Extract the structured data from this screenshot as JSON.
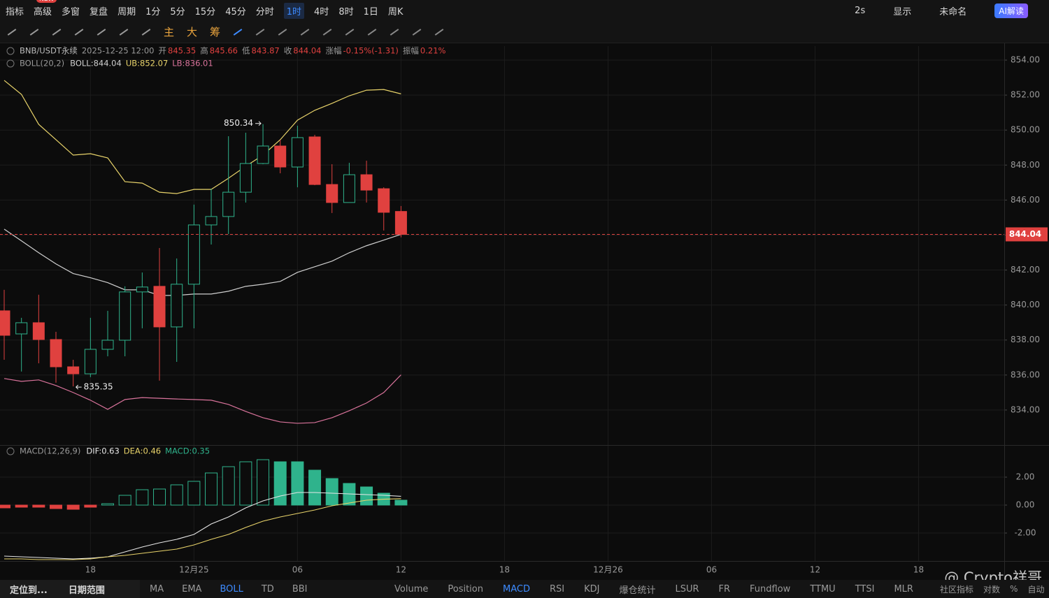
{
  "toolbar": {
    "menu": [
      "指标",
      "高级",
      "多窗",
      "复盘",
      "周期"
    ],
    "badge": "NEW",
    "intervals": [
      {
        "label": "1分"
      },
      {
        "label": "5分"
      },
      {
        "label": "15分"
      },
      {
        "label": "45分"
      },
      {
        "label": "分时"
      },
      {
        "label": "1时",
        "active": true
      },
      {
        "label": "4时"
      },
      {
        "label": "8时"
      },
      {
        "label": "1日"
      },
      {
        "label": "周K"
      }
    ],
    "right": [
      "2s",
      "显示",
      "未命名"
    ],
    "ai": "AI解读",
    "tools": [
      "主",
      "大",
      "筹"
    ]
  },
  "info": {
    "symbol": "BNB/USDT永续",
    "time": "2025-12-25 12:00",
    "open": "开",
    "high": "高",
    "low": "低",
    "close": "收",
    "change_label": "涨幅",
    "change": "-0.15%(-1.31)",
    "amp_label": "振幅",
    "amp": "0.21%"
  },
  "bottom": {
    "left": [
      "定位到...",
      "日期范围"
    ],
    "main_tabs": [
      {
        "label": "MA"
      },
      {
        "label": "EMA"
      },
      {
        "label": "BOLL",
        "active": true
      },
      {
        "label": "TD"
      },
      {
        "label": "BBI"
      }
    ],
    "sub_tabs": [
      {
        "label": "Volume"
      },
      {
        "label": "Position"
      },
      {
        "label": "MACD",
        "active": true
      },
      {
        "label": "RSI"
      },
      {
        "label": "KDJ"
      },
      {
        "label": "爆仓统计"
      },
      {
        "label": "LSUR"
      },
      {
        "label": "FR"
      },
      {
        "label": "Fundflow"
      },
      {
        "label": "TTMU"
      },
      {
        "label": "TTSI"
      },
      {
        "label": "MLR"
      }
    ],
    "right": [
      "社区指标",
      "对数",
      "%",
      "自动"
    ]
  },
  "watermark": "@ Crypto祥哥",
  "chart_data": [
    {
      "type": "candlestick",
      "indicator": "BOLL(20,2)",
      "categories": [
        null,
        null,
        null,
        null,
        null,
        "18",
        null,
        null,
        null,
        null,
        null,
        "12月25",
        null,
        null,
        null,
        null,
        null,
        "06",
        null,
        null,
        null,
        null,
        null,
        "12"
      ],
      "labels_beyond": [
        "18",
        "12月26",
        "06",
        "12",
        "18"
      ],
      "open": [
        839.67,
        838.35,
        838.99,
        838.03,
        836.47,
        836.07,
        837.47,
        837.99,
        840.75,
        841.07,
        838.75,
        841.19,
        844.58,
        845.06,
        846.45,
        848.09,
        849.09,
        847.89,
        849.61,
        846.89,
        845.86,
        847.45,
        846.65,
        845.35
      ],
      "high": [
        840.87,
        839.27,
        840.59,
        838.47,
        836.87,
        839.27,
        839.67,
        841.07,
        841.86,
        843.26,
        842.66,
        845.74,
        846.65,
        849.65,
        849.85,
        850.34,
        849.45,
        850.25,
        849.73,
        848.05,
        848.13,
        848.25,
        846.73,
        845.66
      ],
      "low": [
        836.87,
        836.2,
        836.67,
        835.56,
        835.35,
        835.88,
        837.07,
        837.07,
        838.67,
        835.68,
        836.75,
        838.67,
        843.46,
        844.06,
        845.86,
        848.05,
        847.53,
        846.73,
        846.85,
        845.26,
        845.86,
        845.86,
        844.26,
        843.87
      ],
      "close": [
        838.27,
        838.99,
        838.03,
        836.47,
        836.07,
        837.47,
        837.99,
        840.75,
        841.03,
        838.75,
        841.19,
        844.58,
        845.06,
        846.45,
        848.09,
        849.09,
        847.89,
        849.57,
        846.89,
        845.86,
        847.45,
        846.57,
        845.3,
        844.04
      ],
      "up_color": "#2fb38c",
      "down_color": "#e0413f",
      "ylim": [
        832.0,
        854.8
      ],
      "yticks": [
        {
          "value": 834,
          "label": "834.00"
        },
        {
          "value": 836,
          "label": "836.00"
        },
        {
          "value": 838,
          "label": "838.00"
        },
        {
          "value": 840,
          "label": "840.00"
        },
        {
          "value": 842,
          "label": "842.00"
        },
        {
          "value": 844,
          "label": "844.00"
        },
        {
          "value": 846,
          "label": "846.00"
        },
        {
          "value": 848,
          "label": "848.00"
        },
        {
          "value": 850,
          "label": "850.00"
        },
        {
          "value": 852,
          "label": "852.00"
        },
        {
          "value": 854,
          "label": "854.00"
        }
      ],
      "grid": true,
      "last_price_line": true,
      "series": [
        {
          "name": "BOLL:",
          "color": "#cfcfcf",
          "values": [
            844.34,
            843.67,
            842.99,
            842.35,
            841.8,
            841.56,
            841.28,
            840.87,
            840.87,
            840.55,
            840.55,
            840.63,
            840.63,
            840.79,
            841.07,
            841.19,
            841.35,
            841.87,
            842.19,
            842.51,
            842.99,
            843.39,
            843.71,
            844.04
          ]
        },
        {
          "name": "UB:",
          "color": "#e8d36a",
          "values": [
            852.84,
            852.04,
            850.33,
            849.45,
            848.57,
            848.65,
            848.41,
            847.05,
            846.97,
            846.45,
            846.37,
            846.61,
            846.61,
            847.25,
            847.93,
            848.57,
            849.45,
            850.57,
            851.13,
            851.53,
            851.96,
            852.28,
            852.32,
            852.07
          ]
        },
        {
          "name": "LB:",
          "color": "#d9739b",
          "values": [
            835.8,
            835.64,
            835.72,
            835.4,
            835.0,
            834.56,
            834.04,
            834.6,
            834.71,
            834.67,
            834.63,
            834.6,
            834.56,
            834.32,
            833.92,
            833.56,
            833.32,
            833.24,
            833.28,
            833.56,
            833.96,
            834.4,
            835.0,
            836.01
          ]
        }
      ]
    },
    {
      "type": "macd",
      "indicator": "MACD(12,26,9)",
      "ylim": [
        -4.0,
        4.25
      ],
      "yticks": [
        {
          "value": -2,
          "label": "-2.00"
        },
        {
          "value": 0,
          "label": "0.00"
        },
        {
          "value": 2,
          "label": "2.00"
        }
      ],
      "grid": true,
      "negative_color": "#e0413f",
      "series": [
        {
          "name": "DIF:",
          "kind": "line",
          "color": "#e6e6e6",
          "values": [
            -3.65,
            -3.7,
            -3.75,
            -3.8,
            -3.85,
            -3.8,
            -3.7,
            -3.35,
            -3.0,
            -2.7,
            -2.45,
            -2.1,
            -1.35,
            -0.85,
            -0.2,
            0.3,
            0.65,
            0.9,
            0.9,
            0.85,
            0.8,
            0.75,
            0.7,
            0.63
          ]
        },
        {
          "name": "DEA:",
          "kind": "line",
          "color": "#e8d36a",
          "values": [
            -3.85,
            -3.85,
            -3.9,
            -3.9,
            -3.9,
            -3.85,
            -3.7,
            -3.6,
            -3.45,
            -3.3,
            -3.15,
            -2.85,
            -2.45,
            -2.1,
            -1.6,
            -1.15,
            -0.85,
            -0.6,
            -0.35,
            -0.05,
            0.15,
            0.35,
            0.42,
            0.46
          ]
        },
        {
          "name": "MACD:",
          "kind": "bar",
          "color": "#2fb38c",
          "values": [
            -0.2,
            -0.15,
            -0.15,
            -0.25,
            -0.3,
            -0.15,
            0.1,
            0.7,
            1.1,
            1.15,
            1.45,
            1.7,
            2.3,
            2.75,
            3.1,
            3.25,
            3.1,
            3.1,
            2.5,
            1.9,
            1.55,
            1.3,
            0.85,
            0.35
          ]
        }
      ]
    }
  ]
}
